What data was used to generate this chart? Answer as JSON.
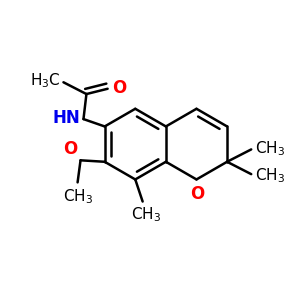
{
  "background_color": "#ffffff",
  "bond_color": "#000000",
  "bond_width": 1.8,
  "atom_colors": {
    "O": "#ff0000",
    "N": "#0000ee",
    "C": "#000000"
  },
  "font_size": 11,
  "fig_size": [
    3.0,
    3.0
  ],
  "dpi": 100
}
